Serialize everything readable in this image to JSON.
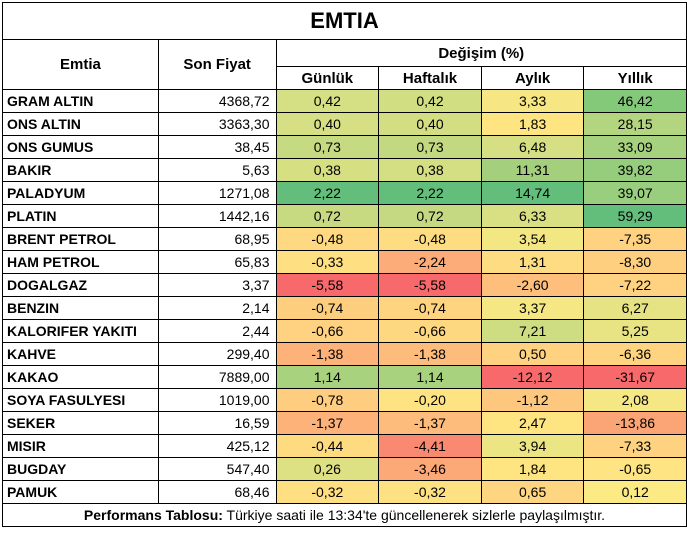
{
  "title": "EMTIA",
  "headers": {
    "emtia": "Emtia",
    "son_fiyat": "Son Fiyat",
    "degisim": "Değişim (%)",
    "gunluk": "Günlük",
    "haftalik": "Haftalık",
    "aylik": "Aylık",
    "yillik": "Yıllık"
  },
  "rows": [
    {
      "name": "GRAM ALTIN",
      "price": "4368,72",
      "gunluk": "0,42",
      "haftalik": "0,42",
      "aylik": "3,33",
      "yillik": "46,42",
      "colors": [
        "#d5df83",
        "#d2de82",
        "#f6e784",
        "#84c87a"
      ]
    },
    {
      "name": "ONS ALTIN",
      "price": "3363,30",
      "gunluk": "0,40",
      "haftalik": "0,40",
      "aylik": "1,83",
      "yillik": "28,15",
      "colors": [
        "#d6df83",
        "#d3de82",
        "#fee582",
        "#b3d580"
      ]
    },
    {
      "name": "ONS GUMUS",
      "price": "38,45",
      "gunluk": "0,73",
      "haftalik": "0,73",
      "aylik": "6,48",
      "yillik": "33,09",
      "colors": [
        "#c6da81",
        "#c3d981",
        "#d6df83",
        "#a6d17e"
      ]
    },
    {
      "name": "BAKIR",
      "price": "5,63",
      "gunluk": "0,38",
      "haftalik": "0,38",
      "aylik": "11,31",
      "yillik": "39,82",
      "colors": [
        "#d7df83",
        "#d4de82",
        "#a4d07e",
        "#95cd7c"
      ]
    },
    {
      "name": "PALADYUM",
      "price": "1271,08",
      "gunluk": "2,22",
      "haftalik": "2,22",
      "aylik": "14,74",
      "yillik": "39,07",
      "colors": [
        "#63be7b",
        "#63be7b",
        "#63be7b",
        "#98ce7d"
      ]
    },
    {
      "name": "PLATIN",
      "price": "1442,16",
      "gunluk": "0,72",
      "haftalik": "0,72",
      "aylik": "6,33",
      "yillik": "59,29",
      "colors": [
        "#c7da81",
        "#c4d981",
        "#d8e083",
        "#63be7b"
      ]
    },
    {
      "name": "BRENT PETROL",
      "price": "68,95",
      "gunluk": "-0,48",
      "haftalik": "-0,48",
      "aylik": "3,54",
      "yillik": "-7,35",
      "colors": [
        "#fed981",
        "#fedd82",
        "#f3e784",
        "#fed280"
      ]
    },
    {
      "name": "HAM PETROL",
      "price": "65,83",
      "gunluk": "-0,33",
      "haftalik": "-2,24",
      "aylik": "1,31",
      "yillik": "-8,30",
      "colors": [
        "#fedf82",
        "#fcac78",
        "#fedd82",
        "#fdcf7f"
      ]
    },
    {
      "name": "DOGALGAZ",
      "price": "3,37",
      "gunluk": "-5,58",
      "haftalik": "-5,58",
      "aylik": "-2,60",
      "yillik": "-7,22",
      "colors": [
        "#f8696b",
        "#f8696b",
        "#fdbf7b",
        "#fed280"
      ]
    },
    {
      "name": "BENZIN",
      "price": "2,14",
      "gunluk": "-0,74",
      "haftalik": "-0,74",
      "aylik": "3,37",
      "yillik": "6,27",
      "colors": [
        "#fece7f",
        "#fed480",
        "#f5e784",
        "#e5e383"
      ],
      "colors2": null
    },
    {
      "name": "KALORIFER YAKITI",
      "price": "2,44",
      "gunluk": "-0,66",
      "haftalik": "-0,66",
      "aylik": "7,21",
      "yillik": "5,25",
      "colors": [
        "#fed280",
        "#fed781",
        "#cfdd82",
        "#e8e383"
      ]
    },
    {
      "name": "KAHVE",
      "price": "299,40",
      "gunluk": "-1,38",
      "haftalik": "-1,38",
      "aylik": "0,50",
      "yillik": "-6,36",
      "colors": [
        "#fdb27a",
        "#fdbc7b",
        "#fed280",
        "#fed480"
      ]
    },
    {
      "name": "KAKAO",
      "price": "7889,00",
      "gunluk": "1,14",
      "haftalik": "1,14",
      "aylik": "-12,12",
      "yillik": "-31,67",
      "colors": [
        "#a9d27f",
        "#a9d27f",
        "#f8696b",
        "#f8696b"
      ]
    },
    {
      "name": "SOYA FASULYESI",
      "price": "1019,00",
      "gunluk": "-0,78",
      "haftalik": "-0,20",
      "aylik": "-1,12",
      "yillik": "2,08",
      "colors": [
        "#fecd7f",
        "#fee382",
        "#fdc77d",
        "#f4e784"
      ]
    },
    {
      "name": "SEKER",
      "price": "16,59",
      "gunluk": "-1,37",
      "haftalik": "-1,37",
      "aylik": "2,47",
      "yillik": "-13,86",
      "colors": [
        "#fdb27a",
        "#fdbc7b",
        "#fee582",
        "#fba476"
      ]
    },
    {
      "name": "MISIR",
      "price": "425,12",
      "gunluk": "-0,44",
      "haftalik": "-4,41",
      "aylik": "3,94",
      "yillik": "-7,33",
      "colors": [
        "#feda81",
        "#f98a71",
        "#ece584",
        "#fed280"
      ]
    },
    {
      "name": "BUGDAY",
      "price": "547,40",
      "gunluk": "0,26",
      "haftalik": "-3,46",
      "aylik": "1,84",
      "yillik": "-0,65",
      "colors": [
        "#dde083",
        "#fca977",
        "#fee582",
        "#fee482"
      ]
    },
    {
      "name": "PAMUK",
      "price": "68,46",
      "gunluk": "-0,32",
      "haftalik": "-0,32",
      "aylik": "0,65",
      "yillik": "0,12",
      "colors": [
        "#fedf82",
        "#fee182",
        "#fed580",
        "#fcea84"
      ]
    }
  ],
  "footer": {
    "label": "Performans Tablosu:",
    "text": " Türkiye saati ile 13:34'te güncellenerek sizlerle paylaşılmıştır."
  }
}
